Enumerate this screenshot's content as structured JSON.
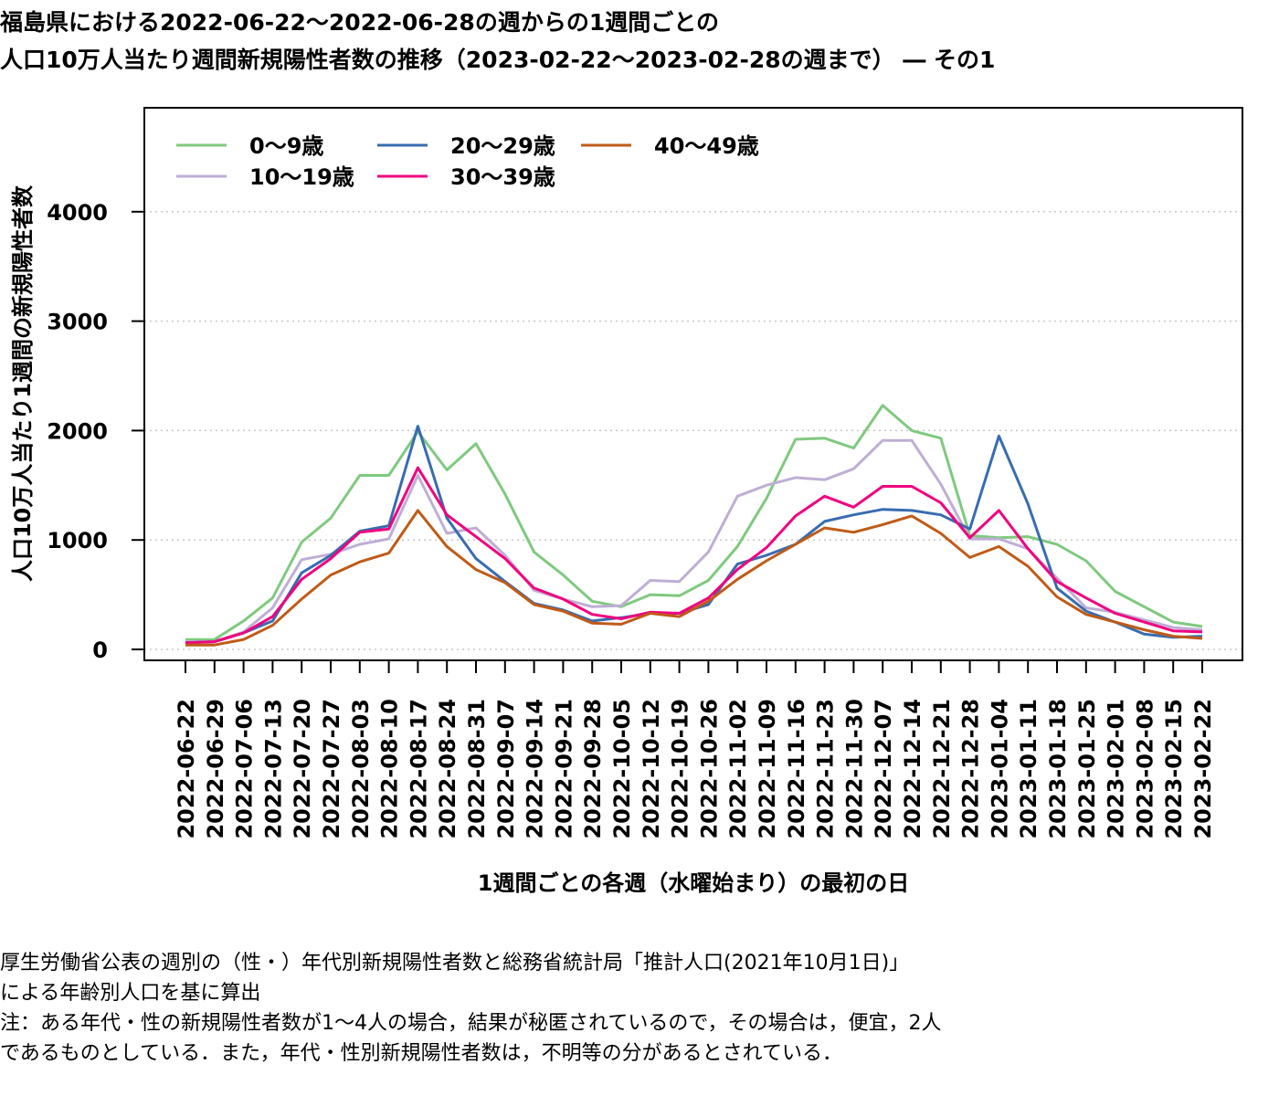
{
  "title": {
    "line1": "福島県における2022-06-22〜2022-06-28の週からの1週間ごとの",
    "line2": "人口10万人当たり週間新規陽性者数の推移（2023-02-22〜2023-02-28の週まで） ― その1"
  },
  "notes": {
    "line1": "厚生労働省公表の週別の（性・）年代別新規陽性者数と総務省統計局「推計人口(2021年10月1日)」",
    "line2": "による年齢別人口を基に算出",
    "line3": "注：ある年代・性の新規陽性者数が1〜4人の場合，結果が秘匿されているので，その場合は，便宜，2人",
    "line4": "であるものとしている．また，年代・性別新規陽性者数は，不明等の分があるとされている．"
  },
  "chart_data": {
    "type": "line",
    "xlabel": "1週間ごとの各週（水曜始まり）の最初の日",
    "ylabel": "人口10万人当たり1週間の新規陽性者数",
    "ylim": [
      -100,
      4950
    ],
    "yticks": [
      0,
      1000,
      2000,
      3000,
      4000
    ],
    "grid": "horizontal dotted",
    "legend_position": "top-left",
    "categories": [
      "2022-06-22",
      "2022-06-29",
      "2022-07-06",
      "2022-07-13",
      "2022-07-20",
      "2022-07-27",
      "2022-08-03",
      "2022-08-10",
      "2022-08-17",
      "2022-08-24",
      "2022-08-31",
      "2022-09-07",
      "2022-09-14",
      "2022-09-21",
      "2022-09-28",
      "2022-10-05",
      "2022-10-12",
      "2022-10-19",
      "2022-10-26",
      "2022-11-02",
      "2022-11-09",
      "2022-11-16",
      "2022-11-23",
      "2022-11-30",
      "2022-12-07",
      "2022-12-14",
      "2022-12-21",
      "2022-12-28",
      "2023-01-04",
      "2023-01-11",
      "2023-01-18",
      "2023-01-25",
      "2023-02-01",
      "2023-02-08",
      "2023-02-15",
      "2023-02-22"
    ],
    "series": [
      {
        "name": "0〜9歳",
        "color": "#7fc97f",
        "values": [
          90,
          90,
          260,
          470,
          980,
          1200,
          1590,
          1590,
          1990,
          1640,
          1880,
          1420,
          890,
          680,
          440,
          390,
          500,
          490,
          630,
          940,
          1380,
          1920,
          1930,
          1840,
          2230,
          2000,
          1930,
          1040,
          1020,
          1030,
          960,
          810,
          530,
          390,
          250,
          210
        ]
      },
      {
        "name": "10〜19歳",
        "color": "#beaed4",
        "values": [
          70,
          70,
          160,
          380,
          820,
          870,
          960,
          1010,
          1590,
          1060,
          1110,
          860,
          540,
          460,
          390,
          400,
          630,
          620,
          890,
          1400,
          1500,
          1570,
          1550,
          1650,
          1910,
          1910,
          1510,
          1010,
          1010,
          920,
          650,
          380,
          340,
          270,
          200,
          180
        ]
      },
      {
        "name": "20〜29歳",
        "color": "#386cb0",
        "values": [
          60,
          70,
          150,
          260,
          700,
          860,
          1080,
          1130,
          2040,
          1200,
          830,
          620,
          420,
          360,
          260,
          290,
          330,
          330,
          410,
          780,
          860,
          960,
          1170,
          1230,
          1280,
          1270,
          1230,
          1100,
          1950,
          1330,
          560,
          350,
          250,
          140,
          110,
          120
        ]
      },
      {
        "name": "30〜39歳",
        "color": "#f0027f",
        "values": [
          60,
          70,
          150,
          300,
          640,
          830,
          1070,
          1100,
          1660,
          1230,
          1030,
          830,
          560,
          460,
          320,
          280,
          340,
          330,
          470,
          730,
          930,
          1220,
          1400,
          1300,
          1490,
          1490,
          1340,
          1020,
          1270,
          920,
          620,
          470,
          330,
          250,
          170,
          160
        ]
      },
      {
        "name": "40〜49歳",
        "color": "#bf5b17",
        "values": [
          40,
          40,
          90,
          220,
          460,
          680,
          800,
          880,
          1270,
          940,
          730,
          610,
          410,
          350,
          240,
          230,
          330,
          300,
          440,
          640,
          810,
          960,
          1110,
          1070,
          1140,
          1220,
          1060,
          840,
          940,
          760,
          480,
          320,
          250,
          180,
          120,
          100
        ]
      }
    ]
  }
}
